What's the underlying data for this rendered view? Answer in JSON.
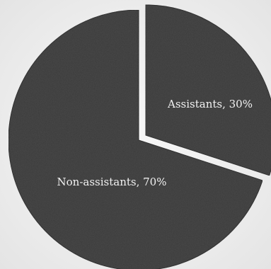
{
  "chart_data": {
    "type": "pie",
    "title": "",
    "slices": [
      {
        "label": "Assistants, 30%",
        "name": "Assistants",
        "value": 30,
        "exploded": true
      },
      {
        "label": "Non-assistants, 70%",
        "name": "Non-assistants",
        "value": 70,
        "exploded": false
      }
    ],
    "start_angle_deg": 0,
    "direction": "clockwise",
    "colors": {
      "slice_fill": "#3a3a3a",
      "slice_stroke": "#222222",
      "label_color": "#f2f2f2"
    }
  }
}
